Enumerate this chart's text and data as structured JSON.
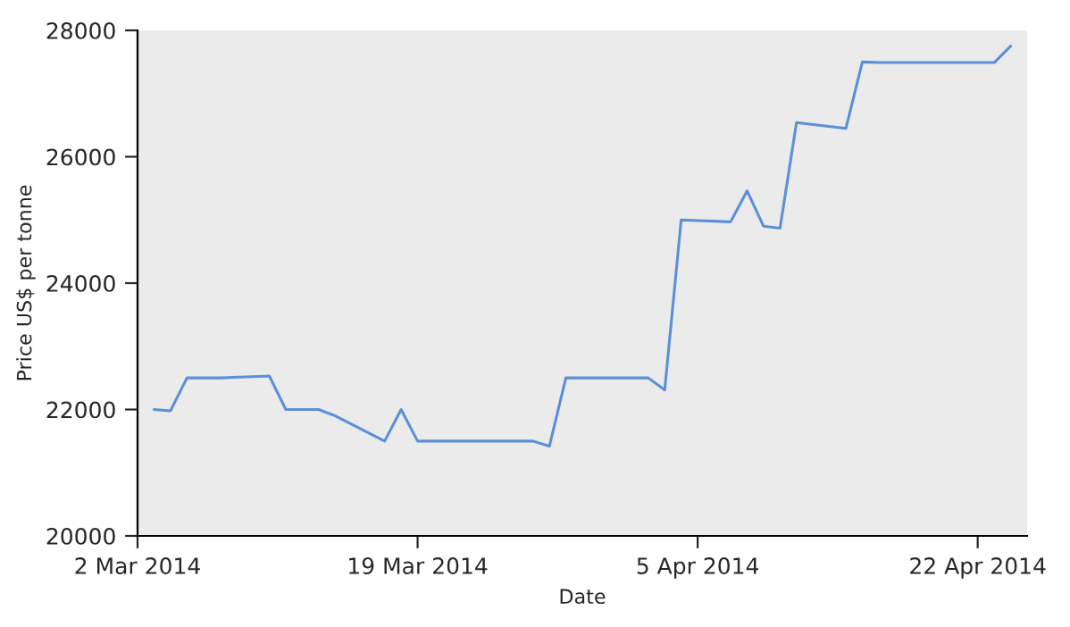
{
  "chart_data": {
    "type": "line",
    "xlabel": "Date",
    "ylabel": "Price US$ per tonne",
    "x": [
      "2014-03-03",
      "2014-03-04",
      "2014-03-05",
      "2014-03-06",
      "2014-03-07",
      "2014-03-10",
      "2014-03-11",
      "2014-03-12",
      "2014-03-13",
      "2014-03-14",
      "2014-03-17",
      "2014-03-18",
      "2014-03-19",
      "2014-03-20",
      "2014-03-21",
      "2014-03-24",
      "2014-03-25",
      "2014-03-26",
      "2014-03-27",
      "2014-03-28",
      "2014-03-31",
      "2014-04-01",
      "2014-04-02",
      "2014-04-03",
      "2014-04-04",
      "2014-04-07",
      "2014-04-08",
      "2014-04-09",
      "2014-04-10",
      "2014-04-11",
      "2014-04-14",
      "2014-04-15",
      "2014-04-16",
      "2014-04-17",
      "2014-04-22",
      "2014-04-23",
      "2014-04-24"
    ],
    "series": [
      {
        "color": "#5b8fd9",
        "values": [
          22000,
          21980,
          22500,
          22500,
          22500,
          22530,
          22000,
          22000,
          22000,
          21900,
          21500,
          22000,
          21500,
          21500,
          21500,
          21500,
          21500,
          21500,
          21420,
          22500,
          22500,
          22500,
          22500,
          22310,
          25000,
          24970,
          25460,
          24900,
          24870,
          26540,
          26450,
          27500,
          27490,
          27490,
          27490,
          27490,
          27750
        ]
      }
    ],
    "xlim": [
      "2014-03-02",
      "2014-04-25"
    ],
    "xticks": [
      {
        "value": "2014-03-02",
        "label": "2 Mar 2014"
      },
      {
        "value": "2014-03-19",
        "label": "19 Mar 2014"
      },
      {
        "value": "2014-04-05",
        "label": "5 Apr 2014"
      },
      {
        "value": "2014-04-22",
        "label": "22 Apr 2014"
      }
    ],
    "ylim": [
      20000,
      28000
    ],
    "yticks": [
      20000,
      22000,
      24000,
      26000,
      28000
    ],
    "grid": false,
    "legend": false,
    "marker": "none",
    "line_style": "solid"
  }
}
